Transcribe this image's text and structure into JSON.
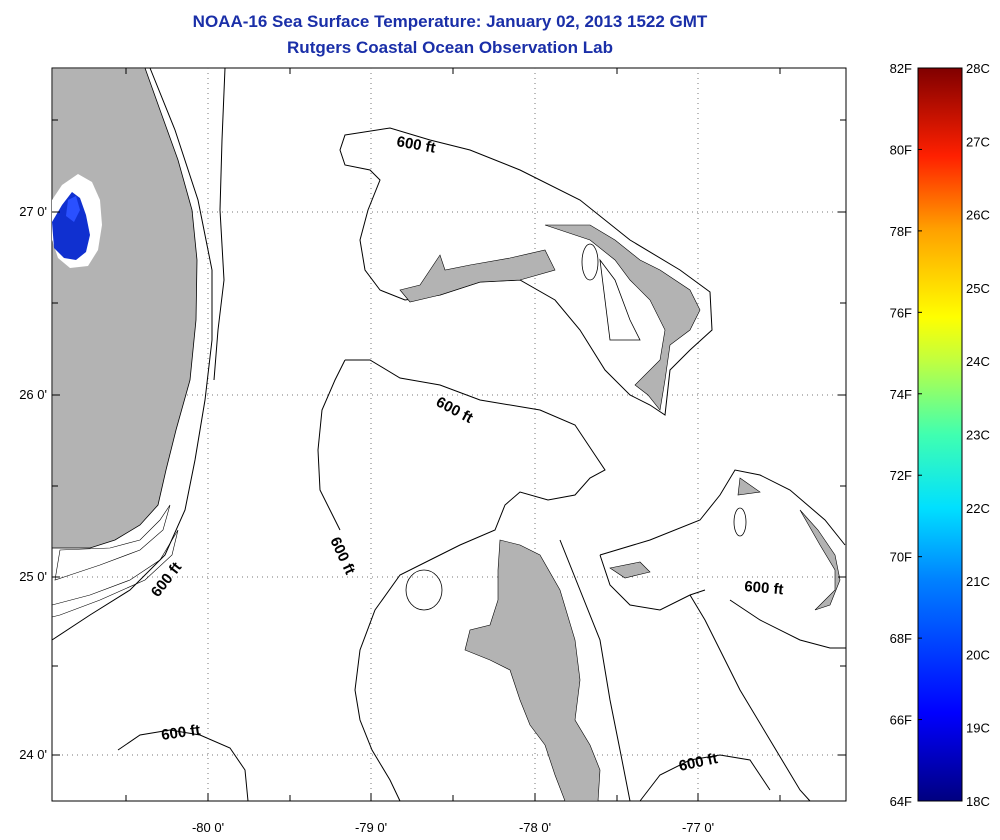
{
  "title": "NOAA-16 Sea Surface Temperature:  January 02, 2013 1522 GMT",
  "subtitle": "Rutgers Coastal Ocean Observation Lab",
  "axes": {
    "lon_ticks": [
      "-80 0'",
      "-79 0'",
      "-78 0'",
      "-77 0'"
    ],
    "lat_ticks": [
      "27 0'",
      "26 0'",
      "25 0'",
      "24 0'"
    ]
  },
  "depth_contour_labels": [
    "600 ft",
    "600 ft",
    "600 ft",
    "600 ft",
    "600 ft",
    "600 ft",
    "600 ft"
  ],
  "colorbar": {
    "fahrenheit_labels": [
      "82F",
      "80F",
      "78F",
      "76F",
      "74F",
      "72F",
      "70F",
      "68F",
      "66F",
      "64F"
    ],
    "celsius_labels": [
      "28C",
      "27C",
      "26C",
      "25C",
      "24C",
      "23C",
      "22C",
      "21C",
      "20C",
      "19C",
      "18C"
    ],
    "range_f": [
      64,
      82
    ],
    "range_c": [
      18,
      28
    ]
  },
  "colors": {
    "land": "#b3b3b3",
    "title": "#1a2fa8",
    "cold_water": "#1030d0"
  }
}
